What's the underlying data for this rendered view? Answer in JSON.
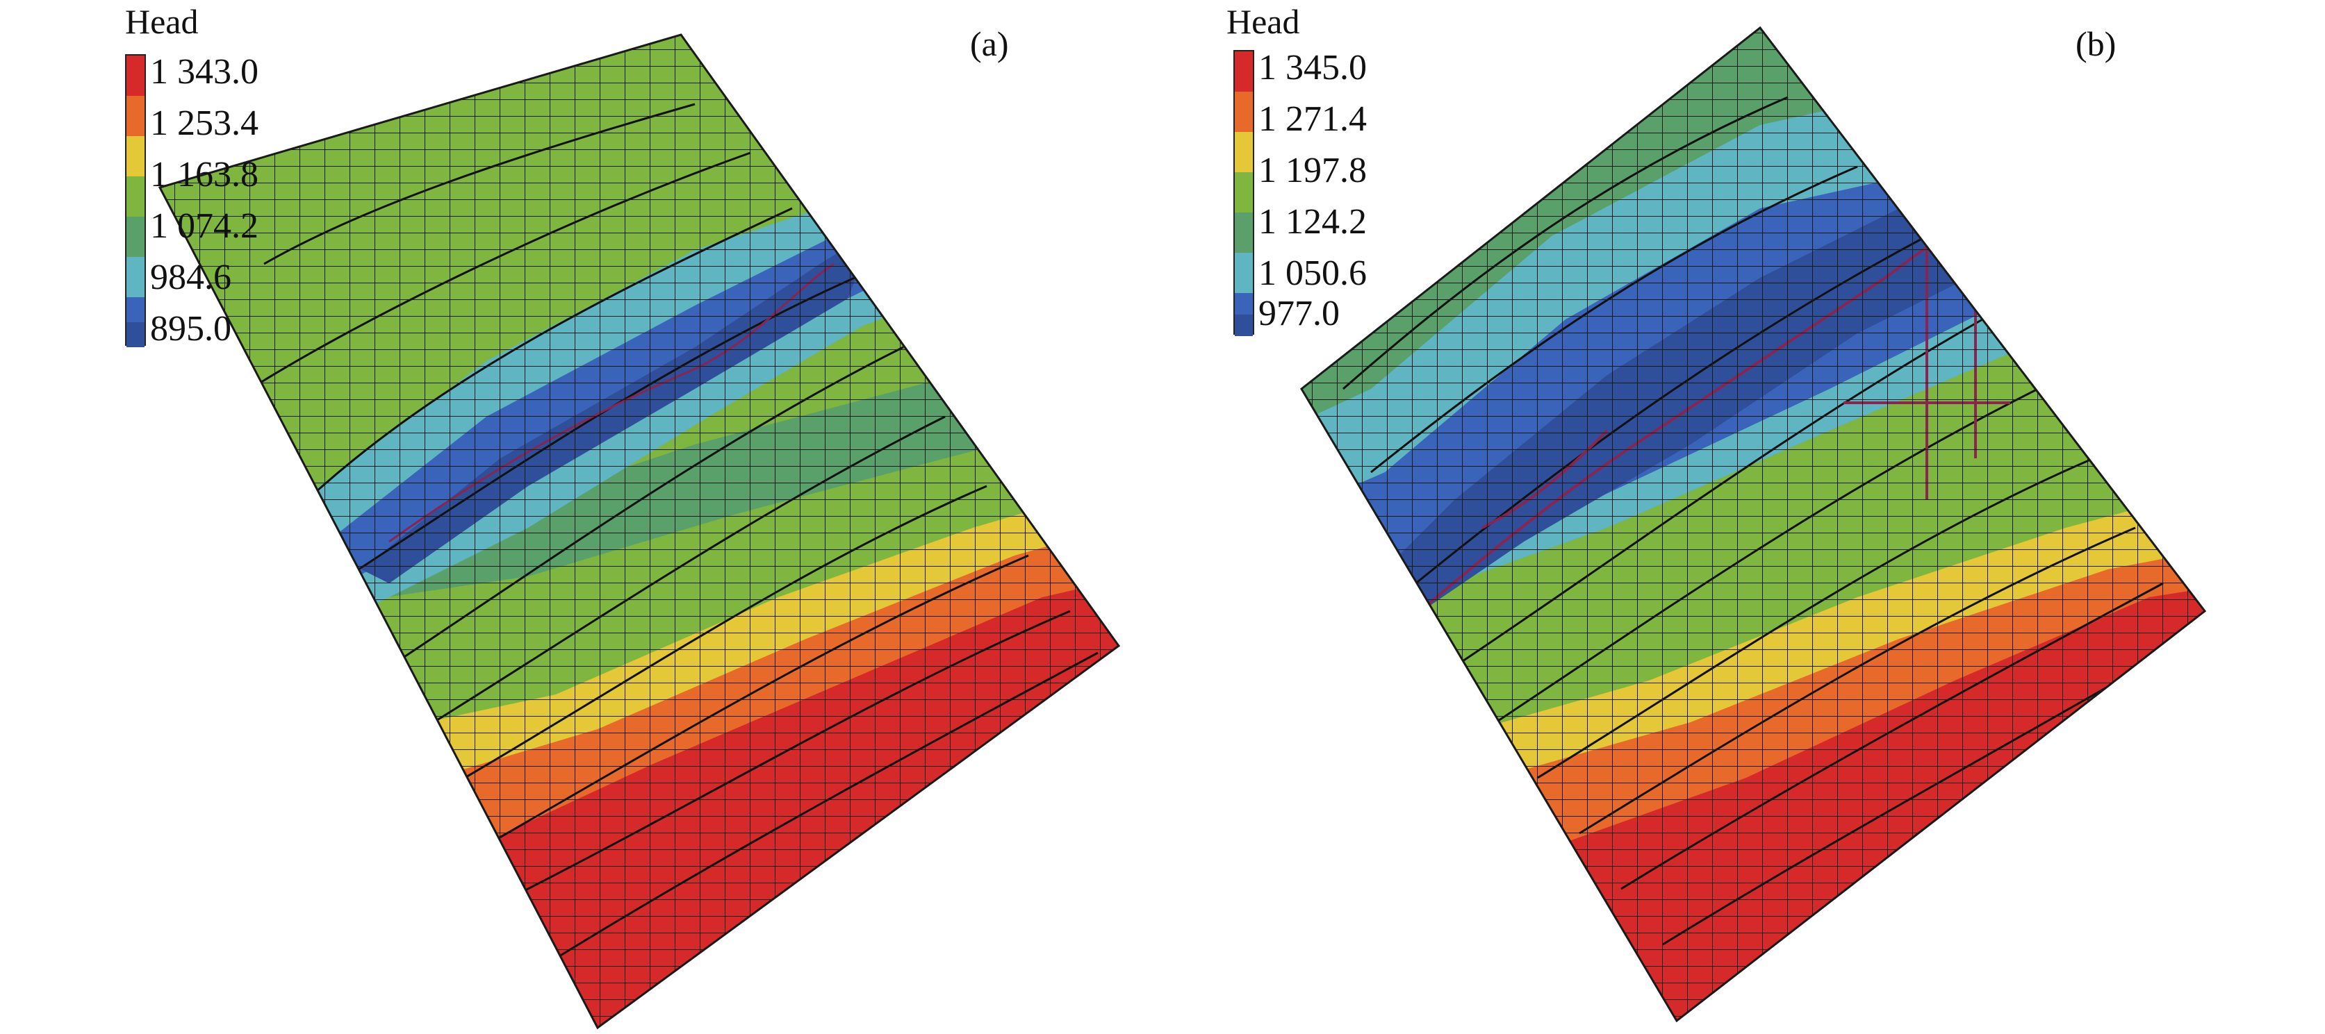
{
  "figure": {
    "panels": [
      {
        "id": "a",
        "label": "(a)",
        "legend": {
          "title": "Head",
          "values": [
            "1 343.0",
            "1 253.4",
            "1 163.8",
            "1 074.2",
            "984.6",
            "895.0"
          ]
        }
      },
      {
        "id": "b",
        "label": "(b)",
        "legend": {
          "title": "Head",
          "values": [
            "1 345.0",
            "1 271.4",
            "1 197.8",
            "1 124.2",
            "1 050.6",
            "977.0"
          ]
        }
      }
    ],
    "colors": {
      "scale": [
        "#d62a2a",
        "#e86a2a",
        "#e4c838",
        "#7fb640",
        "#5aa06a",
        "#5fb5c2",
        "#3a64ba",
        "#2f4f9a"
      ],
      "grid_line": "#1a1a1a",
      "contour_line": "#111111",
      "stream_line": "#8a2552"
    }
  }
}
